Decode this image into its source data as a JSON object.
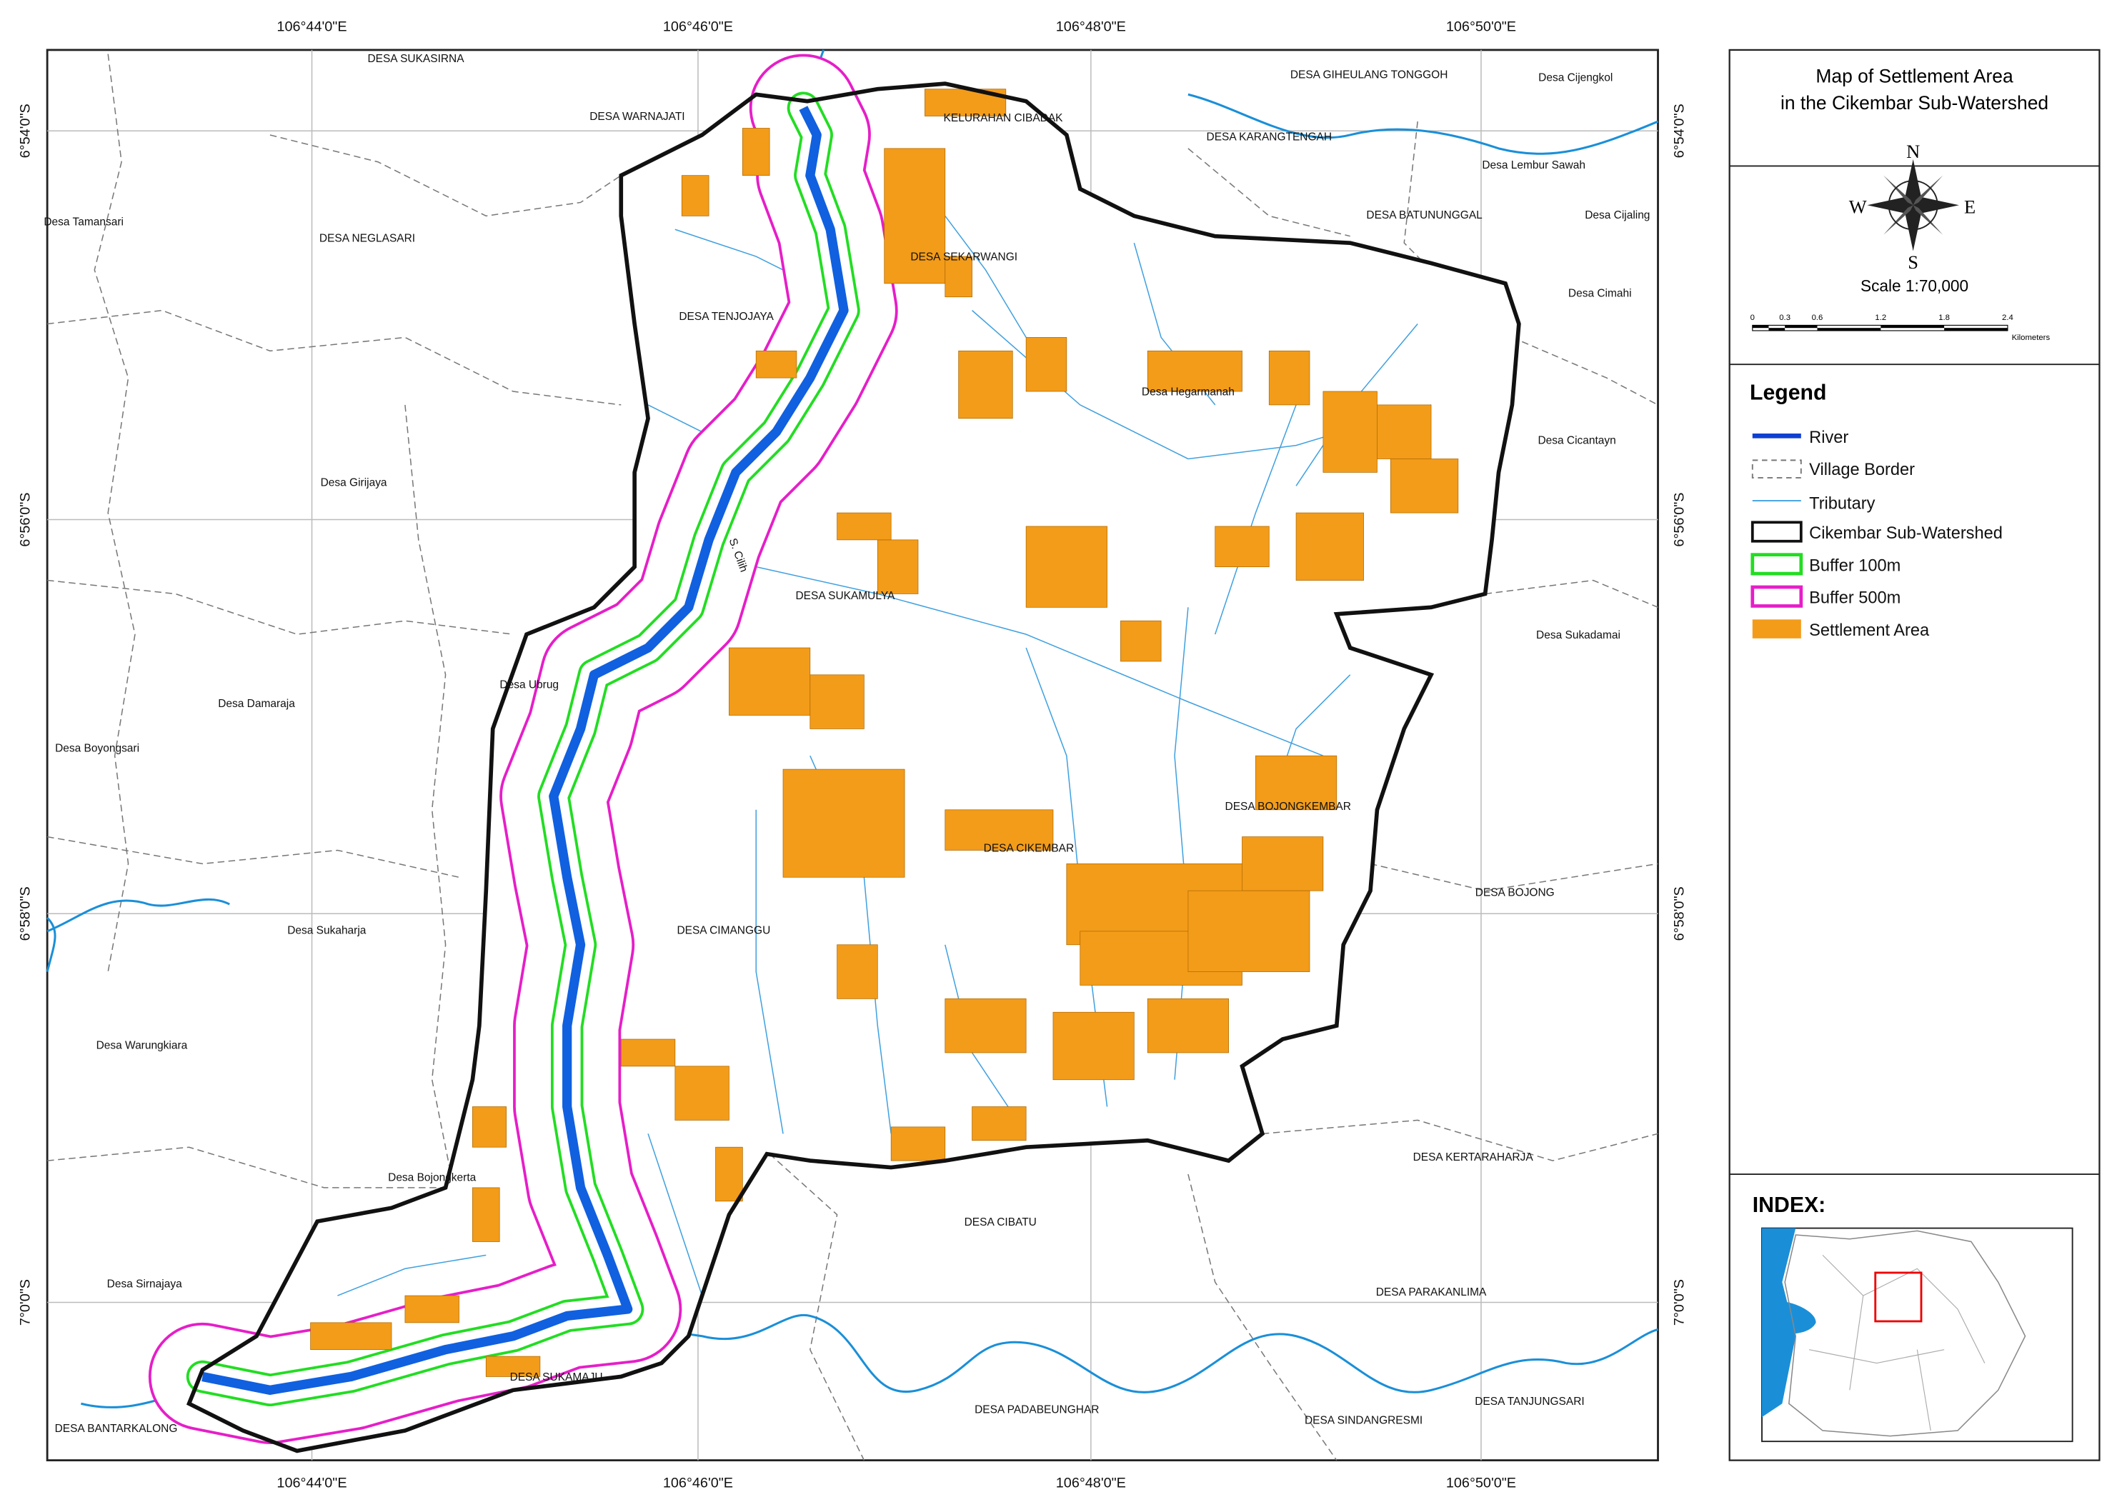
{
  "map": {
    "title": [
      "Map of Settlement Area",
      "in the Cikembar Sub-Watershed"
    ],
    "compass": {
      "n": "N",
      "e": "E",
      "s": "S",
      "w": "W"
    },
    "scale": "Scale 1:70,000",
    "scalebar": {
      "ticks": [
        0,
        0.3,
        0.6,
        1.2,
        1.8,
        2.4
      ],
      "unit": "Kilometers"
    },
    "legend": {
      "title": "Legend",
      "items": [
        "River",
        "Village Border",
        "Tributary",
        "Cikembar Sub-Watershed",
        "Buffer 100m",
        "Buffer 500m",
        "Settlement Area"
      ]
    },
    "index_title": "INDEX:",
    "longitude_labels": [
      "106°44'0\"E",
      "106°46'0\"E",
      "106°48'0\"E",
      "106°50'0\"E"
    ],
    "latitude_labels": [
      "6°54'0\"S",
      "6°56'0\"S",
      "6°58'0\"S",
      "7°0'0\"S"
    ],
    "river_label": "S. Cilih",
    "villages": [
      "DESA SUKASIRNA",
      "DESA WARNAJATI",
      "KELURAHAN CIBADAK",
      "DESA GIHEULANG TONGGOH",
      "Desa Cijengkol",
      "DESA KARANGTENGAH",
      "Desa Lembur Sawah",
      "Desa Tamansari",
      "DESA NEGLASARI",
      "DESA BATUNUNGGAL",
      "Desa Cijaling",
      "DESA SEKARWANGI",
      "Desa Cimahi",
      "DESA TENJOJAYA",
      "Desa Hegarmanah",
      "Desa Cicantayn",
      "Desa Girijaya",
      "DESA SUKAMULYA",
      "Desa Sukadamai",
      "Desa Ubrug",
      "Desa Damaraja",
      "Desa Boyongsari",
      "DESA BOJONGKEMBAR",
      "DESA CIKEMBAR",
      "DESA BOJONG",
      "DESA CIMANGGU",
      "Desa Sukaharja",
      "Desa Warungkiara",
      "DESA KERTARAHARJA",
      "Desa Bojongkerta",
      "DESA CIBATU",
      "Desa Sirnajaya",
      "DESA PARAKANLIMA",
      "DESA SUKAMAJU",
      "DESA BANTARKALONG",
      "DESA PADABEUNGHAR",
      "DESA SINDANGRESMI",
      "DESA TANJUNGSARI"
    ]
  }
}
